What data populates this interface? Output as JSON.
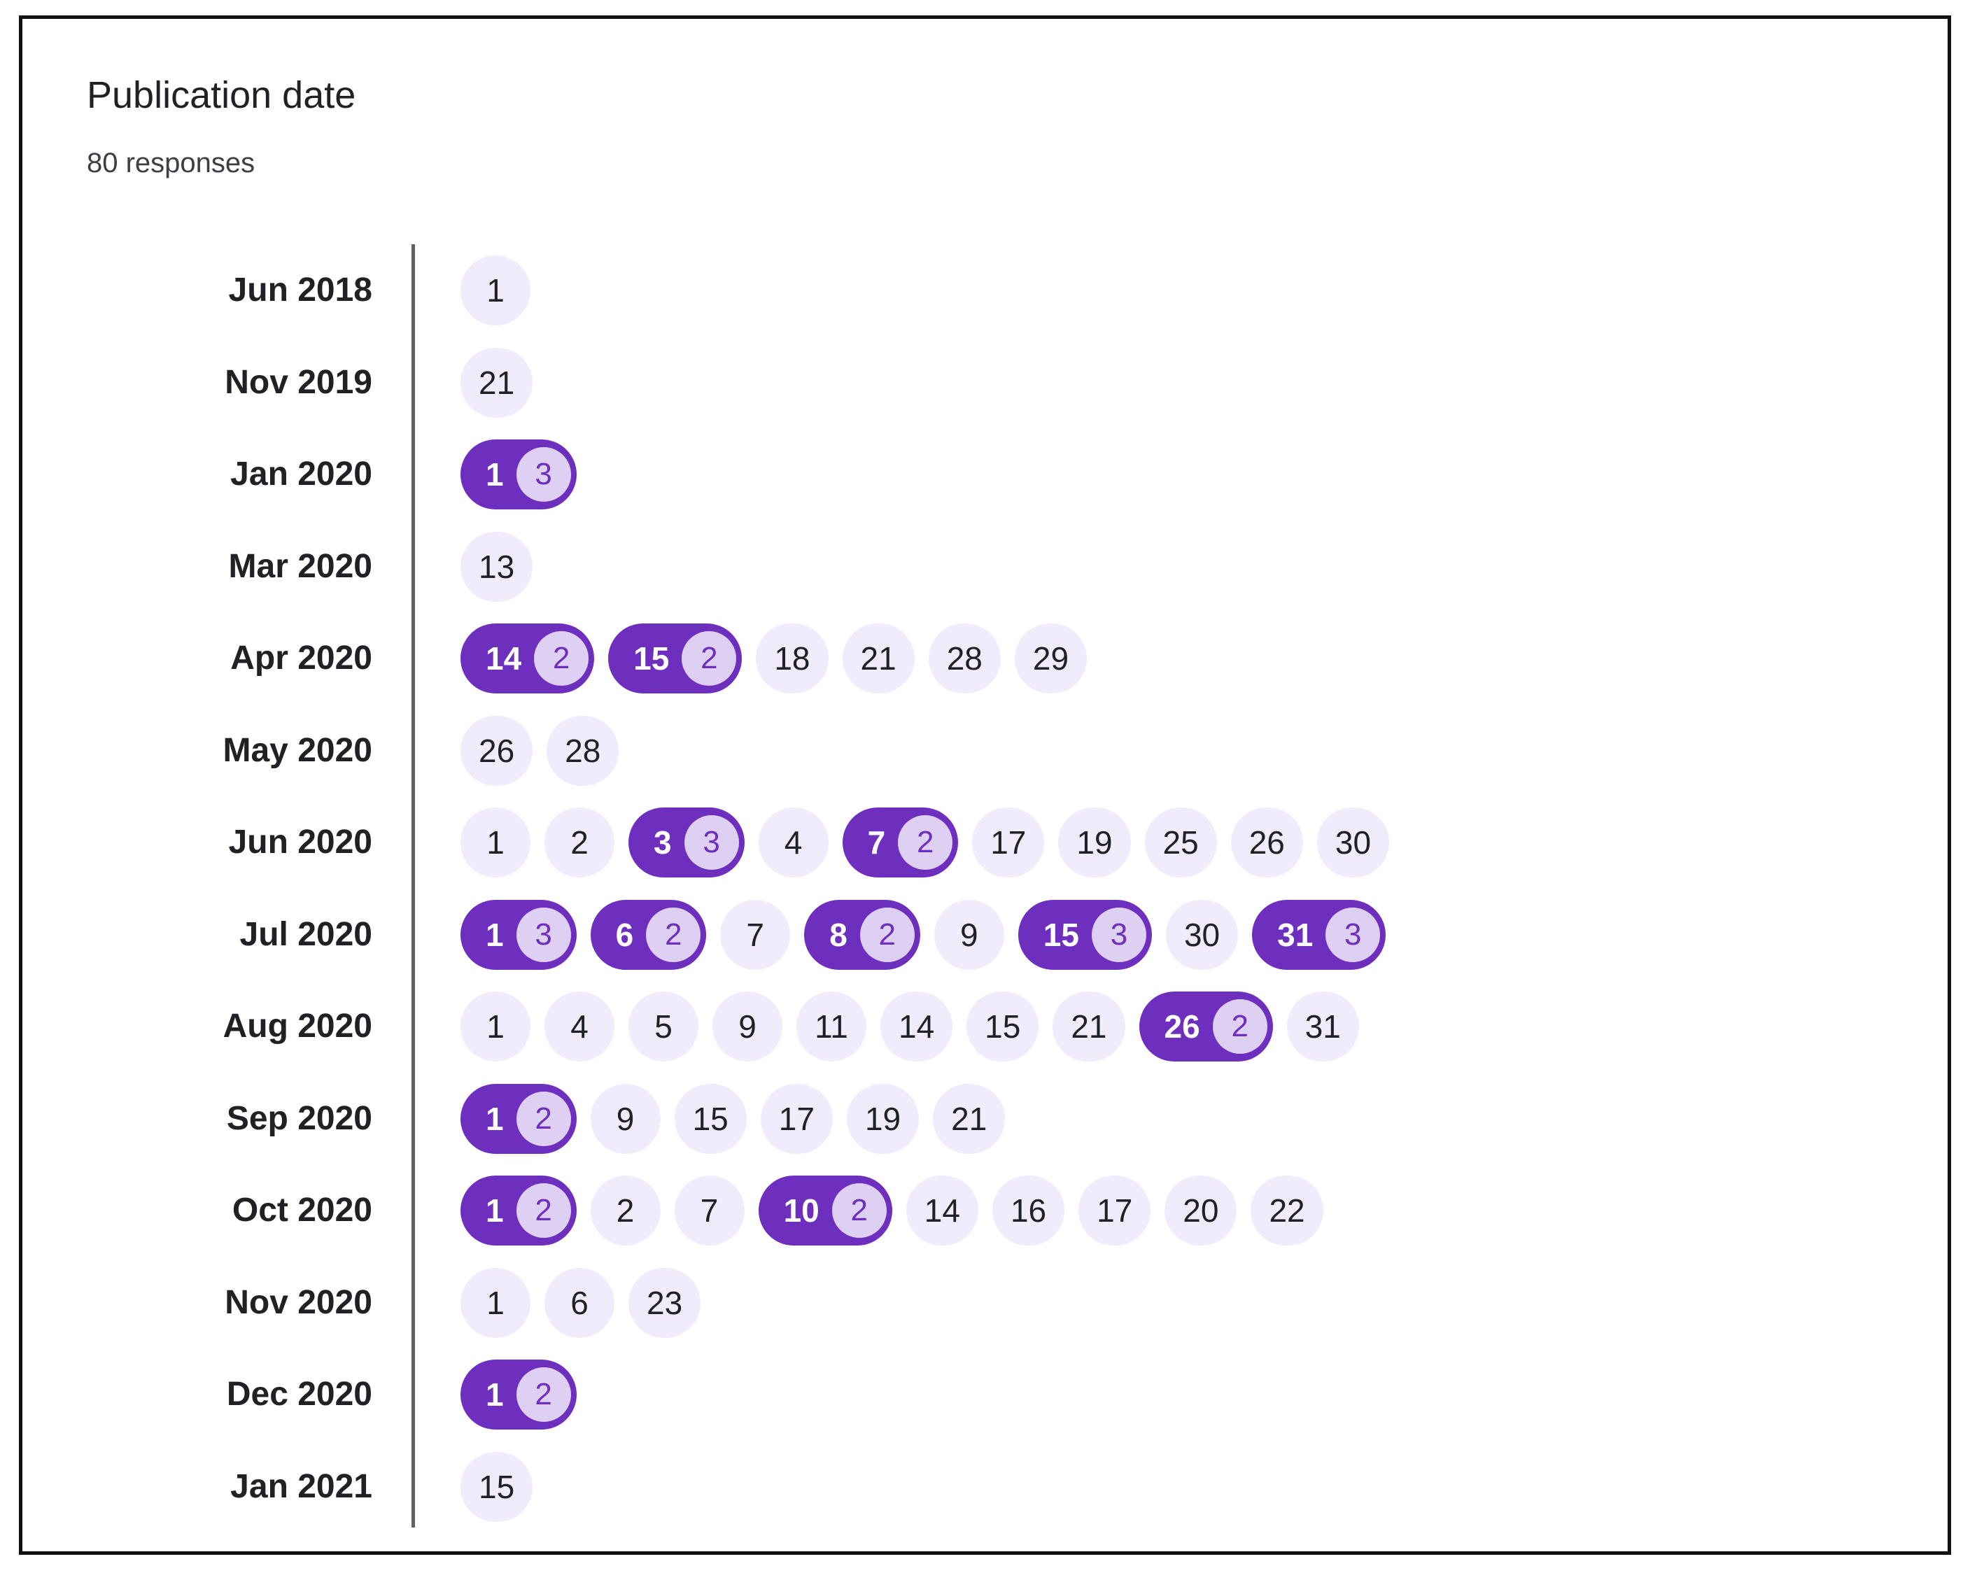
{
  "colors": {
    "chip_background": "#f1ecfb",
    "multi_chip_background": "#6e2fbf",
    "count_badge_background": "#ddd0f3",
    "count_badge_text": "#6e2fbf",
    "axis": "#5f6368"
  },
  "title": "Publication date",
  "subtitle": "80 responses",
  "rows": [
    {
      "label": "Jun 2018",
      "chips": [
        {
          "day": "1"
        }
      ]
    },
    {
      "label": "Nov 2019",
      "chips": [
        {
          "day": "21"
        }
      ]
    },
    {
      "label": "Jan 2020",
      "chips": [
        {
          "day": "1",
          "count": "3"
        }
      ]
    },
    {
      "label": "Mar 2020",
      "chips": [
        {
          "day": "13"
        }
      ]
    },
    {
      "label": "Apr 2020",
      "chips": [
        {
          "day": "14",
          "count": "2"
        },
        {
          "day": "15",
          "count": "2"
        },
        {
          "day": "18"
        },
        {
          "day": "21"
        },
        {
          "day": "28"
        },
        {
          "day": "29"
        }
      ]
    },
    {
      "label": "May 2020",
      "chips": [
        {
          "day": "26"
        },
        {
          "day": "28"
        }
      ]
    },
    {
      "label": "Jun 2020",
      "chips": [
        {
          "day": "1"
        },
        {
          "day": "2"
        },
        {
          "day": "3",
          "count": "3"
        },
        {
          "day": "4"
        },
        {
          "day": "7",
          "count": "2"
        },
        {
          "day": "17"
        },
        {
          "day": "19"
        },
        {
          "day": "25"
        },
        {
          "day": "26"
        },
        {
          "day": "30"
        }
      ]
    },
    {
      "label": "Jul 2020",
      "chips": [
        {
          "day": "1",
          "count": "3"
        },
        {
          "day": "6",
          "count": "2"
        },
        {
          "day": "7"
        },
        {
          "day": "8",
          "count": "2"
        },
        {
          "day": "9"
        },
        {
          "day": "15",
          "count": "3"
        },
        {
          "day": "30"
        },
        {
          "day": "31",
          "count": "3"
        }
      ]
    },
    {
      "label": "Aug 2020",
      "chips": [
        {
          "day": "1"
        },
        {
          "day": "4"
        },
        {
          "day": "5"
        },
        {
          "day": "9"
        },
        {
          "day": "11"
        },
        {
          "day": "14"
        },
        {
          "day": "15"
        },
        {
          "day": "21"
        },
        {
          "day": "26",
          "count": "2"
        },
        {
          "day": "31"
        }
      ]
    },
    {
      "label": "Sep 2020",
      "chips": [
        {
          "day": "1",
          "count": "2"
        },
        {
          "day": "9"
        },
        {
          "day": "15"
        },
        {
          "day": "17"
        },
        {
          "day": "19"
        },
        {
          "day": "21"
        }
      ]
    },
    {
      "label": "Oct 2020",
      "chips": [
        {
          "day": "1",
          "count": "2"
        },
        {
          "day": "2"
        },
        {
          "day": "7"
        },
        {
          "day": "10",
          "count": "2"
        },
        {
          "day": "14"
        },
        {
          "day": "16"
        },
        {
          "day": "17"
        },
        {
          "day": "20"
        },
        {
          "day": "22"
        }
      ]
    },
    {
      "label": "Nov 2020",
      "chips": [
        {
          "day": "1"
        },
        {
          "day": "6"
        },
        {
          "day": "23"
        }
      ]
    },
    {
      "label": "Dec 2020",
      "chips": [
        {
          "day": "1",
          "count": "2"
        }
      ]
    },
    {
      "label": "Jan 2021",
      "chips": [
        {
          "day": "15"
        }
      ]
    }
  ]
}
